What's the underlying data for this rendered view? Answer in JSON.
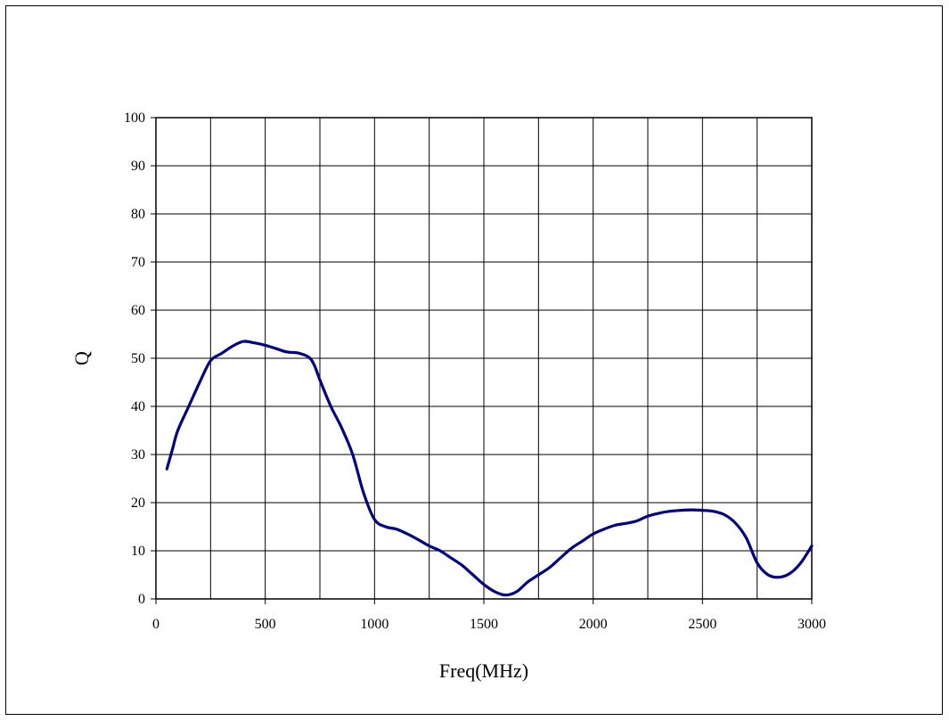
{
  "chart_data": {
    "type": "line",
    "title": "",
    "xlabel": "Freq(MHz)",
    "ylabel": "Q",
    "xlim": [
      0,
      3000
    ],
    "ylim": [
      0,
      100
    ],
    "x_ticks": [
      0,
      500,
      1000,
      1500,
      2000,
      2500,
      3000
    ],
    "y_ticks": [
      0,
      10,
      20,
      30,
      40,
      50,
      60,
      70,
      80,
      90,
      100
    ],
    "x_grid_step": 250,
    "grid": true,
    "legend": "none",
    "series": [
      {
        "color": "#000080",
        "points": [
          [
            50,
            27
          ],
          [
            75,
            31
          ],
          [
            100,
            35
          ],
          [
            150,
            40
          ],
          [
            200,
            45
          ],
          [
            250,
            49.5
          ],
          [
            300,
            51
          ],
          [
            350,
            52.5
          ],
          [
            400,
            53.5
          ],
          [
            450,
            53.2
          ],
          [
            500,
            52.7
          ],
          [
            550,
            52
          ],
          [
            600,
            51.3
          ],
          [
            650,
            51.1
          ],
          [
            700,
            50.2
          ],
          [
            725,
            48.5
          ],
          [
            750,
            45.5
          ],
          [
            800,
            40
          ],
          [
            850,
            35.5
          ],
          [
            900,
            30
          ],
          [
            950,
            22
          ],
          [
            1000,
            16.5
          ],
          [
            1050,
            15
          ],
          [
            1100,
            14.5
          ],
          [
            1150,
            13.5
          ],
          [
            1200,
            12.3
          ],
          [
            1250,
            11
          ],
          [
            1300,
            10
          ],
          [
            1350,
            8.5
          ],
          [
            1400,
            7
          ],
          [
            1450,
            5
          ],
          [
            1500,
            3
          ],
          [
            1550,
            1.5
          ],
          [
            1600,
            0.8
          ],
          [
            1650,
            1.5
          ],
          [
            1700,
            3.5
          ],
          [
            1750,
            5
          ],
          [
            1800,
            6.5
          ],
          [
            1850,
            8.5
          ],
          [
            1900,
            10.5
          ],
          [
            1950,
            12
          ],
          [
            2000,
            13.5
          ],
          [
            2050,
            14.5
          ],
          [
            2100,
            15.3
          ],
          [
            2150,
            15.7
          ],
          [
            2200,
            16.2
          ],
          [
            2250,
            17.2
          ],
          [
            2300,
            17.8
          ],
          [
            2350,
            18.2
          ],
          [
            2400,
            18.4
          ],
          [
            2450,
            18.5
          ],
          [
            2500,
            18.4
          ],
          [
            2550,
            18.2
          ],
          [
            2600,
            17.5
          ],
          [
            2650,
            15.8
          ],
          [
            2700,
            12.7
          ],
          [
            2750,
            7.5
          ],
          [
            2800,
            5
          ],
          [
            2850,
            4.5
          ],
          [
            2900,
            5.3
          ],
          [
            2950,
            7.5
          ],
          [
            3000,
            11
          ]
        ]
      }
    ]
  }
}
